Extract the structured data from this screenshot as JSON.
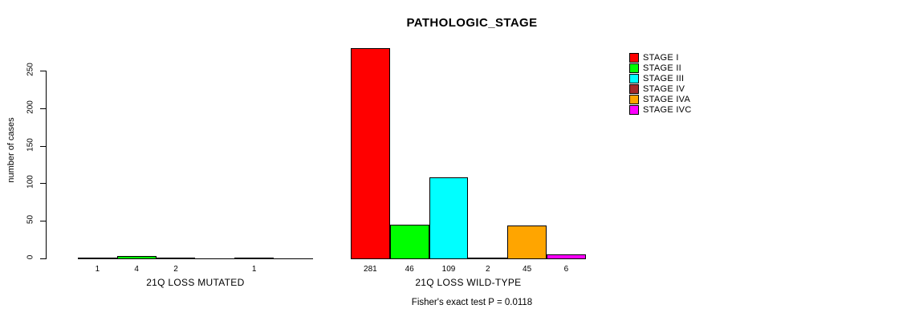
{
  "title": "PATHOLOGIC_STAGE",
  "y_axis_label": "number of cases",
  "footer": "Fisher's exact test P = 0.0118",
  "legend": {
    "position": "right",
    "items": [
      {
        "label": "STAGE I",
        "color": "#FF0000"
      },
      {
        "label": "STAGE II",
        "color": "#00FF00"
      },
      {
        "label": "STAGE III",
        "color": "#00FFFF"
      },
      {
        "label": "STAGE IV",
        "color": "#A52A2A"
      },
      {
        "label": "STAGE IVA",
        "color": "#FFA500"
      },
      {
        "label": "STAGE IVC",
        "color": "#FF00FF"
      }
    ]
  },
  "chart_data": {
    "type": "bar",
    "title": "PATHOLOGIC_STAGE",
    "xlabel": "",
    "ylabel": "number of cases",
    "ylim": [
      0,
      281
    ],
    "yticks": [
      0,
      50,
      100,
      150,
      200,
      250
    ],
    "grid": false,
    "legend_position": "right",
    "categories": [
      "STAGE I",
      "STAGE II",
      "STAGE III",
      "STAGE IV",
      "STAGE IVA",
      "STAGE IVC"
    ],
    "series_colors": [
      "#FF0000",
      "#00FF00",
      "#00FFFF",
      "#A52A2A",
      "#FFA500",
      "#FF00FF"
    ],
    "groups": [
      {
        "label": "21Q LOSS MUTATED",
        "values": [
          1,
          4,
          2,
          0,
          1,
          0
        ],
        "bar_labels": [
          "1",
          "4",
          "2",
          "",
          "1",
          ""
        ]
      },
      {
        "label": "21Q LOSS WILD-TYPE",
        "values": [
          281,
          46,
          109,
          2,
          45,
          6
        ],
        "bar_labels": [
          "281",
          "46",
          "109",
          "2",
          "45",
          "6"
        ]
      }
    ],
    "annotation": "Fisher's exact test P = 0.0118"
  }
}
